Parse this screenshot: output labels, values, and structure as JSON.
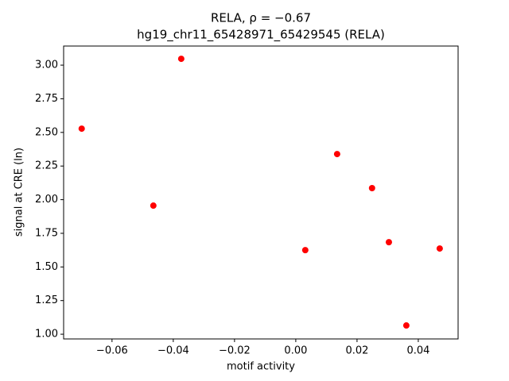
{
  "chart_data": {
    "type": "scatter",
    "title": "RELA, ρ = −0.67",
    "subtitle": "hg19_chr11_65428971_65429545 (RELA)",
    "x_label": "motif activity",
    "y_label": "signal at CRE (ln)",
    "color": "#ff0000",
    "x": [
      -0.0699,
      -0.0465,
      -0.0374,
      0.0031,
      0.0135,
      0.0249,
      0.0304,
      0.0361,
      0.047
    ],
    "values": [
      2.528,
      1.956,
      3.047,
      1.625,
      2.339,
      2.086,
      1.684,
      1.065,
      1.637
    ],
    "xlim": [
      -0.0758,
      0.053
    ],
    "ylim": [
      0.965,
      3.142
    ],
    "xticks": [
      {
        "value": -0.06,
        "label": "−0.06"
      },
      {
        "value": -0.04,
        "label": "−0.04"
      },
      {
        "value": -0.02,
        "label": "−0.02"
      },
      {
        "value": 0,
        "label": "0.00"
      },
      0.02,
      0.04
    ],
    "yticks": [
      {
        "value": 1,
        "label": "1.00"
      },
      1.25,
      {
        "value": 1.5,
        "label": "1.50"
      },
      1.75,
      {
        "value": 2,
        "label": "2.00"
      },
      2.25,
      {
        "value": 2.5,
        "label": "2.50"
      },
      2.75,
      {
        "value": 3,
        "label": "3.00"
      }
    ]
  }
}
